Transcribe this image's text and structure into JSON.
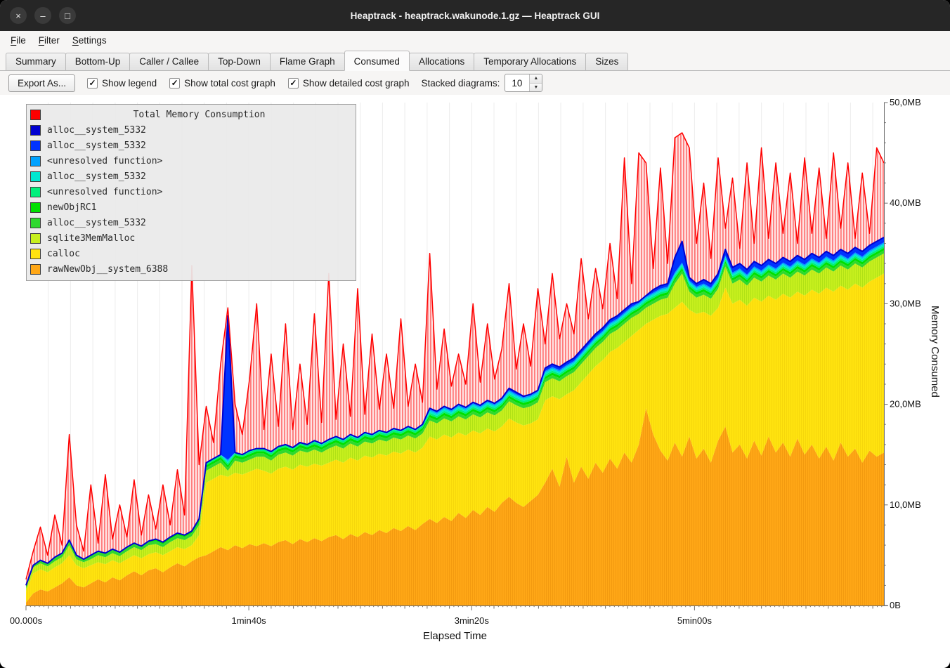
{
  "window": {
    "title": "Heaptrack - heaptrack.wakunode.1.gz — Heaptrack GUI",
    "controls": [
      {
        "name": "close",
        "glyph": "×"
      },
      {
        "name": "minimize",
        "glyph": "–"
      },
      {
        "name": "maximize",
        "glyph": "□"
      }
    ]
  },
  "menu": {
    "items": [
      {
        "label": "File",
        "mnemonic": 0
      },
      {
        "label": "Filter",
        "mnemonic": 0
      },
      {
        "label": "Settings",
        "mnemonic": 0
      }
    ]
  },
  "tabs": {
    "active": "Consumed",
    "items": [
      "Summary",
      "Bottom-Up",
      "Caller / Callee",
      "Top-Down",
      "Flame Graph",
      "Consumed",
      "Allocations",
      "Temporary Allocations",
      "Sizes"
    ]
  },
  "toolbar": {
    "export_label": "Export As...",
    "checkboxes": [
      {
        "label": "Show legend",
        "checked": true
      },
      {
        "label": "Show total cost graph",
        "checked": true
      },
      {
        "label": "Show detailed cost graph",
        "checked": true
      }
    ],
    "stacked_label": "Stacked diagrams:",
    "stacked_value": "10"
  },
  "legend": {
    "title": "Total Memory Consumption",
    "title_color": "#ff0000",
    "items": [
      {
        "label": "alloc__system_5332",
        "color": "#0000d0"
      },
      {
        "label": "alloc__system_5332",
        "color": "#0033ff"
      },
      {
        "label": "<unresolved function>",
        "color": "#00a2ff"
      },
      {
        "label": "alloc__system_5332",
        "color": "#00e8d0"
      },
      {
        "label": "<unresolved function>",
        "color": "#00f07c"
      },
      {
        "label": "newObjRC1",
        "color": "#00e000"
      },
      {
        "label": "alloc__system_5332",
        "color": "#2fd82f"
      },
      {
        "label": "sqlite3MemMalloc",
        "color": "#c7f01e"
      },
      {
        "label": "calloc",
        "color": "#ffe30f"
      },
      {
        "label": "rawNewObj__system_6388",
        "color": "#ffa716"
      }
    ]
  },
  "axes": {
    "x_label": "Elapsed Time",
    "y_label": "Memory Consumed",
    "x_ticks": [
      {
        "t": 0,
        "label": "00.000s"
      },
      {
        "t": 100,
        "label": "1min40s"
      },
      {
        "t": 200,
        "label": "3min20s"
      },
      {
        "t": 300,
        "label": "5min00s"
      }
    ],
    "y_ticks": [
      {
        "v": 0,
        "label": "0B"
      },
      {
        "v": 10,
        "label": "10,0MB"
      },
      {
        "v": 20,
        "label": "20,0MB"
      },
      {
        "v": 30,
        "label": "30,0MB"
      },
      {
        "v": 40,
        "label": "40,0MB"
      },
      {
        "v": 50,
        "label": "50,0MB"
      }
    ]
  },
  "chart_data": {
    "type": "area",
    "stacked": true,
    "x_unit": "seconds",
    "x_range": [
      0,
      385
    ],
    "y_unit": "MB",
    "y_range": [
      0,
      50
    ],
    "samples": 120,
    "note": "values are cumulative stack-top levels in MB at 120 uniform time samples; last series is the total-consumption line",
    "series": [
      {
        "name": "rawNewObj__system_6388",
        "role": "stack-top",
        "color": "#ffa716",
        "values": [
          0.3,
          1.2,
          1.6,
          1.4,
          1.8,
          2.2,
          2.8,
          2.0,
          1.8,
          2.2,
          2.6,
          2.3,
          2.8,
          2.5,
          3.0,
          3.4,
          3.0,
          3.5,
          3.7,
          3.3,
          3.8,
          4.2,
          3.9,
          4.4,
          4.8,
          5.0,
          5.4,
          5.8,
          5.5,
          6.0,
          5.7,
          6.1,
          5.9,
          6.2,
          5.9,
          6.3,
          6.5,
          6.1,
          6.6,
          6.3,
          6.7,
          6.4,
          6.8,
          7.0,
          6.6,
          7.1,
          6.8,
          7.3,
          7.0,
          7.5,
          7.2,
          7.7,
          7.4,
          7.9,
          7.5,
          8.1,
          8.6,
          8.2,
          8.8,
          8.4,
          9.2,
          8.7,
          9.5,
          9.0,
          9.8,
          9.3,
          10.2,
          10.8,
          10.2,
          9.8,
          10.4,
          11.0,
          12.2,
          13.6,
          11.8,
          14.8,
          12.2,
          13.8,
          12.6,
          14.2,
          13.2,
          14.6,
          13.6,
          15.2,
          14.2,
          16.0,
          19.6,
          17.0,
          15.4,
          14.4,
          16.2,
          14.8,
          16.8,
          14.6,
          15.6,
          14.2,
          16.4,
          17.8,
          15.2,
          16.0,
          14.6,
          16.4,
          14.9,
          16.8,
          15.2,
          16.2,
          14.8,
          16.6,
          15.0,
          16.0,
          14.6,
          15.8,
          14.4,
          16.2,
          14.8,
          15.6,
          14.2,
          15.4,
          14.8,
          15.2
        ]
      },
      {
        "name": "calloc",
        "role": "stack-top",
        "color": "#ffe30f",
        "values": [
          1.4,
          3.2,
          3.6,
          3.3,
          3.8,
          4.2,
          5.0,
          4.0,
          3.7,
          4.0,
          4.3,
          4.1,
          4.5,
          4.2,
          4.6,
          5.0,
          4.7,
          5.1,
          5.3,
          5.0,
          5.4,
          5.8,
          5.6,
          6.0,
          7.0,
          12.2,
          12.6,
          13.0,
          12.8,
          13.2,
          13.0,
          13.3,
          13.6,
          13.4,
          13.1,
          13.6,
          13.8,
          13.5,
          14.0,
          13.8,
          14.1,
          13.9,
          14.2,
          14.5,
          14.2,
          14.7,
          14.4,
          14.9,
          14.7,
          15.1,
          14.9,
          15.3,
          15.1,
          15.5,
          15.2,
          15.7,
          16.8,
          16.5,
          17.0,
          16.7,
          17.2,
          16.9,
          17.4,
          17.1,
          17.6,
          17.3,
          17.8,
          18.6,
          18.2,
          17.9,
          18.1,
          18.5,
          20.4,
          20.8,
          20.5,
          21.0,
          21.4,
          22.2,
          23.0,
          23.8,
          24.4,
          25.2,
          25.6,
          26.2,
          26.8,
          27.4,
          28.0,
          28.4,
          28.8,
          29.0,
          29.6,
          30.2,
          29.4,
          29.0,
          29.2,
          28.8,
          29.6,
          31.6,
          30.0,
          30.4,
          29.8,
          30.6,
          30.2,
          30.8,
          30.4,
          31.0,
          30.6,
          31.2,
          30.8,
          31.4,
          31.0,
          31.6,
          31.2,
          31.8,
          31.4,
          32.0,
          31.6,
          32.2,
          32.6,
          33.0
        ]
      },
      {
        "name": "sqlite3MemMalloc",
        "role": "stack-top",
        "color": "#c7f01e",
        "values": [
          1.7,
          3.8,
          4.2,
          3.9,
          4.4,
          4.8,
          6.0,
          4.6,
          4.3,
          4.6,
          5.0,
          4.8,
          5.2,
          4.9,
          5.4,
          5.8,
          5.5,
          6.0,
          6.1,
          5.8,
          6.3,
          6.7,
          6.5,
          6.9,
          8.0,
          13.4,
          13.8,
          14.2,
          13.4,
          14.4,
          14.2,
          14.5,
          14.8,
          14.8,
          14.4,
          15.0,
          15.2,
          14.9,
          15.4,
          15.2,
          15.5,
          15.2,
          15.6,
          15.9,
          15.6,
          16.1,
          15.8,
          16.3,
          16.1,
          16.5,
          16.3,
          16.7,
          16.5,
          16.9,
          16.6,
          17.1,
          18.4,
          18.1,
          18.6,
          18.3,
          18.8,
          18.5,
          19.0,
          18.7,
          19.2,
          18.9,
          19.4,
          20.3,
          19.9,
          19.6,
          19.8,
          20.2,
          22.2,
          22.6,
          22.3,
          22.8,
          23.2,
          24.0,
          24.8,
          25.6,
          26.2,
          27.0,
          27.4,
          28.0,
          28.6,
          29.0,
          29.6,
          30.0,
          30.4,
          30.6,
          32.0,
          33.0,
          31.2,
          30.6,
          30.9,
          30.5,
          31.5,
          33.7,
          32.0,
          32.4,
          31.8,
          32.6,
          32.2,
          32.8,
          32.4,
          33.0,
          32.6,
          33.2,
          32.8,
          33.4,
          33.0,
          33.6,
          33.2,
          33.8,
          33.4,
          34.0,
          33.6,
          34.2,
          34.6,
          35.0
        ]
      },
      {
        "name": "alloc__system_5332",
        "role": "stack-top",
        "color": "#0000d0",
        "values": [
          2.0,
          4.0,
          4.5,
          4.2,
          4.8,
          5.2,
          6.5,
          5.0,
          4.6,
          5.0,
          5.4,
          5.2,
          5.6,
          5.3,
          5.8,
          6.2,
          5.9,
          6.4,
          6.6,
          6.3,
          6.8,
          7.2,
          7.0,
          7.4,
          8.6,
          14.2,
          14.6,
          15.0,
          28.8,
          15.2,
          15.0,
          15.4,
          15.6,
          15.6,
          15.3,
          15.8,
          16.0,
          15.7,
          16.2,
          16.0,
          16.4,
          16.1,
          16.5,
          16.8,
          16.5,
          17.0,
          16.7,
          17.2,
          17.0,
          17.4,
          17.2,
          17.6,
          17.4,
          17.8,
          17.5,
          18.0,
          19.6,
          19.3,
          19.8,
          19.5,
          20.0,
          19.7,
          20.2,
          19.9,
          20.4,
          20.1,
          20.6,
          21.6,
          21.2,
          20.8,
          21.0,
          21.4,
          23.6,
          24.0,
          23.7,
          24.2,
          24.6,
          25.4,
          26.2,
          27.0,
          27.6,
          28.4,
          28.8,
          29.4,
          30.0,
          30.2,
          30.8,
          31.4,
          31.8,
          32.0,
          34.6,
          36.2,
          32.6,
          32.0,
          32.4,
          32.0,
          33.0,
          35.4,
          33.6,
          34.0,
          33.4,
          34.2,
          33.8,
          34.4,
          34.0,
          34.6,
          34.2,
          34.8,
          34.4,
          35.0,
          34.6,
          35.2,
          34.8,
          35.4,
          35.0,
          35.6,
          35.2,
          35.8,
          36.2,
          36.6
        ]
      },
      {
        "name": "Total Memory Consumption",
        "role": "line",
        "color": "#ff0000",
        "values": [
          2.6,
          5.4,
          7.8,
          5.0,
          9.0,
          6.0,
          17.0,
          8.0,
          5.4,
          12.0,
          6.2,
          13.0,
          6.6,
          10.0,
          6.8,
          12.5,
          7.0,
          11.0,
          7.6,
          12.0,
          8.0,
          13.5,
          9.0,
          33.8,
          14.0,
          19.8,
          16.2,
          24.0,
          29.6,
          20.0,
          17.0,
          22.5,
          30.0,
          17.5,
          25.0,
          17.8,
          28.0,
          17.5,
          24.0,
          18.0,
          29.0,
          18.2,
          33.0,
          18.5,
          26.0,
          18.8,
          31.5,
          19.0,
          27.0,
          19.5,
          25.0,
          19.6,
          28.5,
          19.8,
          24.0,
          20.2,
          35.0,
          21.5,
          27.5,
          21.8,
          25.0,
          22.0,
          30.0,
          22.2,
          28.0,
          22.5,
          25.5,
          32.0,
          23.5,
          28.0,
          23.8,
          31.5,
          26.0,
          33.0,
          26.5,
          30.0,
          27.0,
          34.5,
          28.5,
          33.5,
          29.5,
          36.0,
          30.5,
          44.5,
          32.0,
          45.0,
          44.0,
          33.5,
          43.5,
          34.0,
          46.5,
          47.0,
          45.5,
          36.0,
          42.0,
          34.5,
          44.5,
          37.5,
          42.5,
          35.5,
          44.0,
          36.0,
          45.5,
          36.5,
          44.0,
          37.0,
          43.0,
          36.0,
          44.5,
          37.0,
          43.5,
          36.5,
          45.0,
          37.5,
          44.0,
          36.5,
          43.0,
          37.0,
          45.5,
          44.0
        ]
      }
    ],
    "thin_bands": [
      {
        "name": "alloc__system_5332",
        "color": "#2fd82f",
        "width_mb": 0.3
      },
      {
        "name": "newObjRC1",
        "color": "#00e000",
        "width_mb": 0.25
      },
      {
        "name": "<unresolved function>",
        "color": "#00f07c",
        "width_mb": 0.2
      },
      {
        "name": "alloc__system_5332",
        "color": "#00e8d0",
        "width_mb": 0.2
      },
      {
        "name": "<unresolved function>",
        "color": "#00a2ff",
        "width_mb": 0.15
      },
      {
        "name": "alloc__system_5332",
        "color": "#0033ff",
        "width_mb": "fill"
      }
    ]
  }
}
